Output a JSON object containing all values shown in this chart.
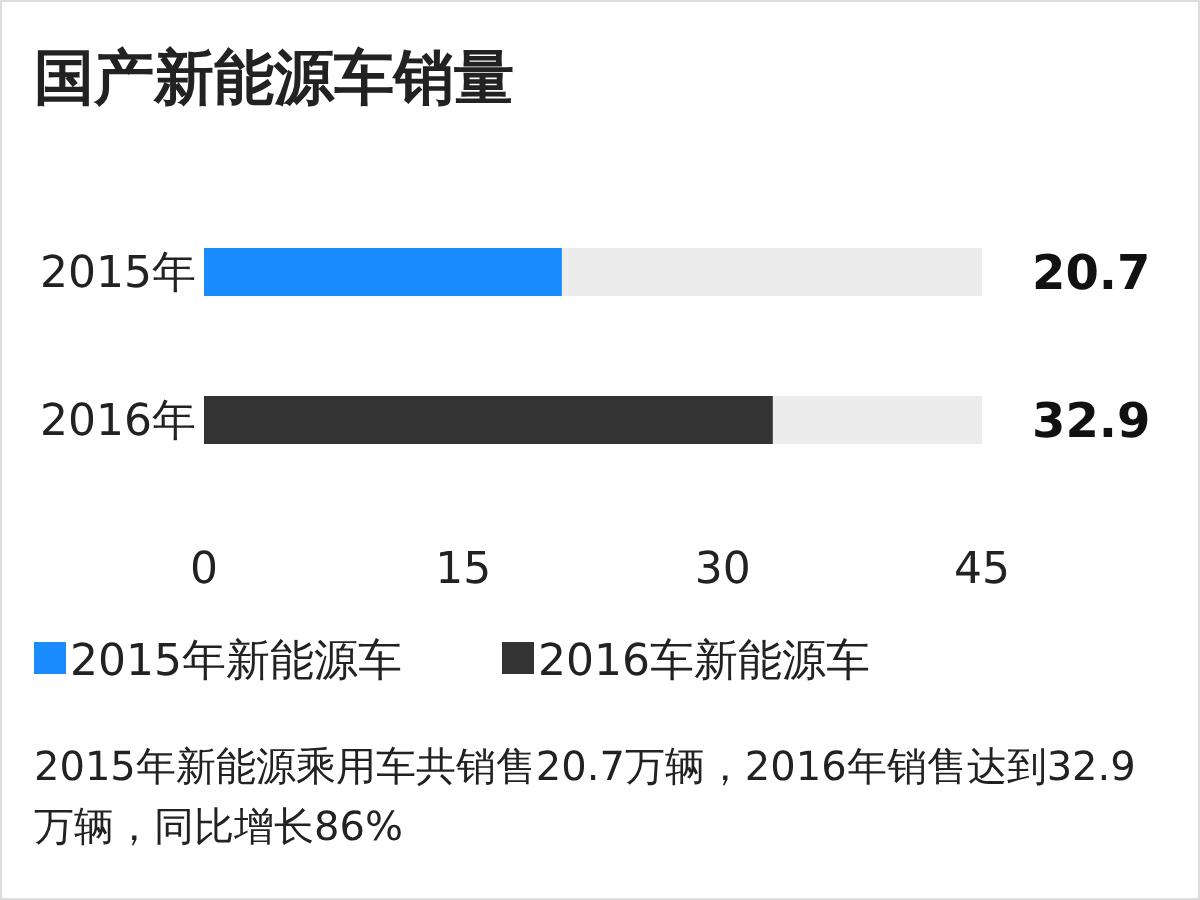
{
  "chart_data": {
    "type": "bar",
    "orientation": "horizontal",
    "title": "国产新能源车销量",
    "categories": [
      "2015年",
      "2016年"
    ],
    "series": [
      {
        "name": "2015年新能源车",
        "color": "#1a8cff",
        "values": [
          20.7,
          null
        ]
      },
      {
        "name": "2016车新能源车",
        "color": "#333333",
        "values": [
          null,
          32.9
        ]
      }
    ],
    "xlim": [
      0,
      45
    ],
    "xticks": [
      0,
      15,
      30,
      45
    ],
    "legend": "bottom",
    "annotations": [
      "20.7",
      "32.9",
      "2015年新能源乘用车共销售20.7万辆，2016年销售达到32.9万辆，同比增长86%"
    ]
  }
}
